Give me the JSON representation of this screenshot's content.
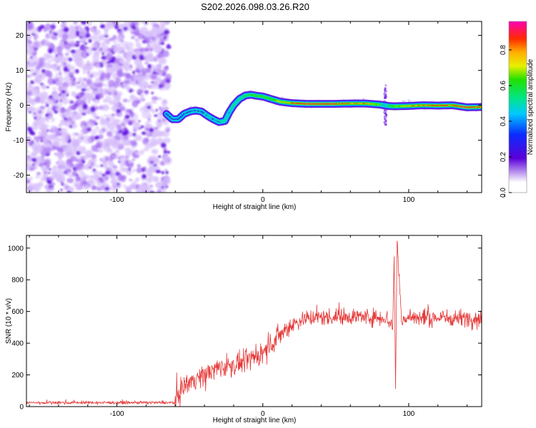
{
  "title": "S202.2026.098.03.26.R20",
  "chart_data": [
    {
      "type": "heatmap",
      "title": "S202.2026.098.03.26.R20",
      "xlabel": "Height of straight line (km)",
      "ylabel": "Frequency (Hz)",
      "xlim": [
        -162,
        150
      ],
      "ylim": [
        -25,
        24
      ],
      "xticks": [
        -100,
        0,
        100
      ],
      "xtick_labels": [
        "-100",
        "0",
        "100"
      ],
      "yticks": [
        -20,
        -10,
        0,
        10,
        20
      ],
      "ytick_labels": [
        "-20",
        "-10",
        "0",
        "10",
        "20"
      ],
      "noise_region_x": [
        -162,
        -66
      ],
      "ridge": {
        "x": [
          -66,
          -62,
          -58,
          -54,
          -50,
          -46,
          -42,
          -38,
          -34,
          -30,
          -26,
          -23,
          -20,
          -16,
          -12,
          -8,
          -4,
          0,
          4,
          8,
          12,
          16,
          20,
          30,
          40,
          50,
          60,
          70,
          80,
          83,
          86,
          90,
          100,
          110,
          120,
          130,
          140,
          150
        ],
        "y": [
          -2.5,
          -4.0,
          -4.0,
          -2.5,
          -1.8,
          -1.5,
          -1.8,
          -3.0,
          -4.0,
          -4.8,
          -4.5,
          -2.0,
          0.0,
          1.8,
          2.8,
          3.0,
          2.7,
          2.5,
          2.0,
          1.5,
          1.0,
          0.8,
          0.6,
          0.4,
          0.4,
          0.4,
          0.5,
          0.5,
          0.2,
          0.0,
          -0.2,
          -0.3,
          -0.2,
          0.0,
          -0.1,
          0.0,
          -0.6,
          -0.5
        ],
        "amplitude": [
          0.3,
          0.3,
          0.35,
          0.35,
          0.35,
          0.35,
          0.4,
          0.4,
          0.4,
          0.4,
          0.45,
          0.45,
          0.5,
          0.5,
          0.55,
          0.6,
          0.6,
          0.6,
          0.65,
          0.7,
          0.75,
          0.8,
          0.85,
          0.95,
          0.9,
          0.92,
          0.85,
          0.85,
          0.7,
          0.4,
          0.5,
          0.65,
          0.8,
          0.85,
          0.9,
          0.88,
          0.95,
          0.85
        ]
      },
      "spike": {
        "x": 84,
        "y_range": [
          -6,
          6
        ]
      },
      "colorbar": {
        "label": "Normalized spectral amplitude",
        "range": [
          0.0,
          0.96
        ],
        "ticks": [
          0.0,
          0.2,
          0.4,
          0.6,
          0.8
        ],
        "tick_labels": [
          "0.0",
          "0.2",
          "0.4",
          "0.6",
          "0.8"
        ]
      }
    },
    {
      "type": "line",
      "xlabel": "Height of straight line (km)",
      "ylabel": "SNR (10 * v/v)",
      "xlim": [
        -162,
        150
      ],
      "ylim": [
        0,
        1080
      ],
      "xticks": [
        -100,
        0,
        100
      ],
      "xtick_labels": [
        "-100",
        "0",
        "100"
      ],
      "yticks": [
        0,
        200,
        400,
        600,
        800,
        1000
      ],
      "ytick_labels": [
        "0",
        "200",
        "400",
        "600",
        "800",
        "1000"
      ],
      "color": "#e53a3a",
      "trend": {
        "x": [
          -162,
          -60,
          -56,
          -50,
          -40,
          -30,
          -20,
          -10,
          0,
          10,
          20,
          30,
          60,
          85,
          89,
          90,
          91,
          92,
          95,
          100,
          150
        ],
        "y": [
          25,
          25,
          120,
          160,
          200,
          250,
          260,
          290,
          340,
          440,
          520,
          560,
          570,
          560,
          500,
          950,
          120,
          1060,
          550,
          560,
          560
        ]
      },
      "noise": {
        "segments": [
          [
            -162,
            -60,
            8
          ],
          [
            -60,
            20,
            55
          ],
          [
            20,
            150,
            45
          ]
        ]
      }
    }
  ],
  "colors": {
    "line": "#e53a3a",
    "noise_purple": "#7a1ee8",
    "axis": "#000000"
  }
}
